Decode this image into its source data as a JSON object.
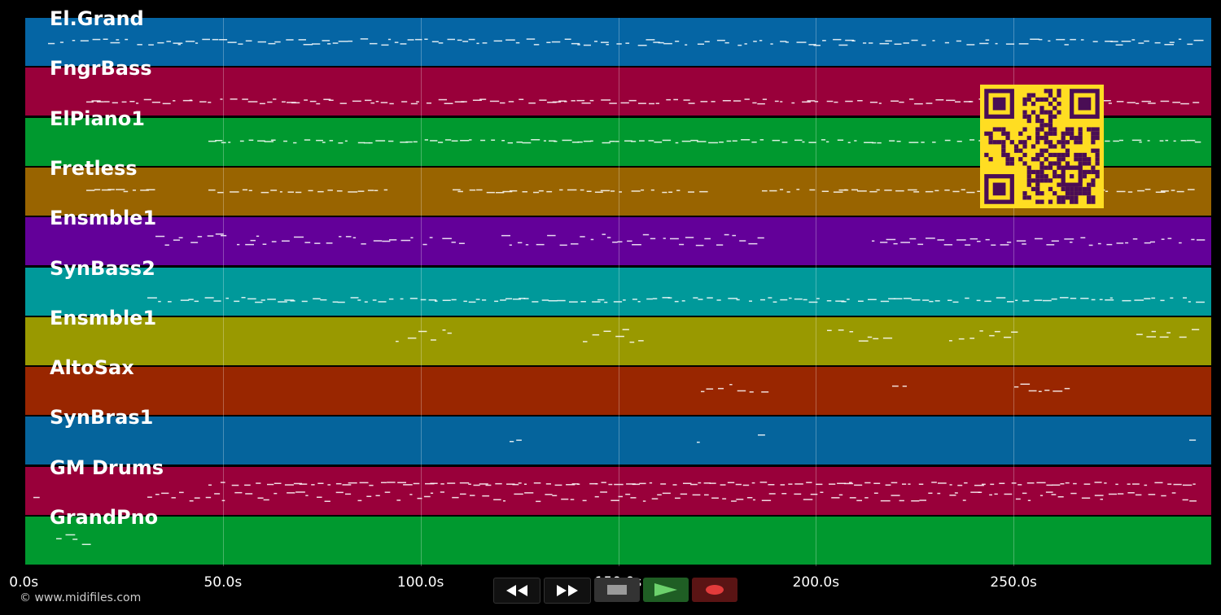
{
  "tracks": [
    {
      "name": "El.Grand",
      "color": "#0565a4"
    },
    {
      "name": "FngrBass",
      "color": "#99003a"
    },
    {
      "name": "ElPiano1",
      "color": "#00992f"
    },
    {
      "name": "Fretless",
      "color": "#996400"
    },
    {
      "name": "Ensmble1",
      "color": "#630099"
    },
    {
      "name": "SynBass2",
      "color": "#00999a"
    },
    {
      "name": "Ensmble1",
      "color": "#999900"
    },
    {
      "name": "AltoSax",
      "color": "#992600"
    },
    {
      "name": "SynBras1",
      "color": "#05649c"
    },
    {
      "name": "GM Drums",
      "color": "#99003a"
    },
    {
      "name": "GrandPno",
      "color": "#00992f"
    }
  ],
  "timeline": {
    "ticks": [
      "0.0s",
      "50.0s",
      "100.0s",
      "150.0s",
      "200.0s",
      "250.0s"
    ],
    "tick_values": [
      0,
      50,
      100,
      150,
      200,
      250
    ],
    "max_seconds": 300
  },
  "transport": {
    "rewind": "rewind-icon",
    "fast_forward": "fast-forward-icon",
    "stop": "stop-icon",
    "play": "play-icon",
    "record": "record-icon"
  },
  "copyright": "© www.midifiles.com",
  "overlay": "qr-code-icon"
}
